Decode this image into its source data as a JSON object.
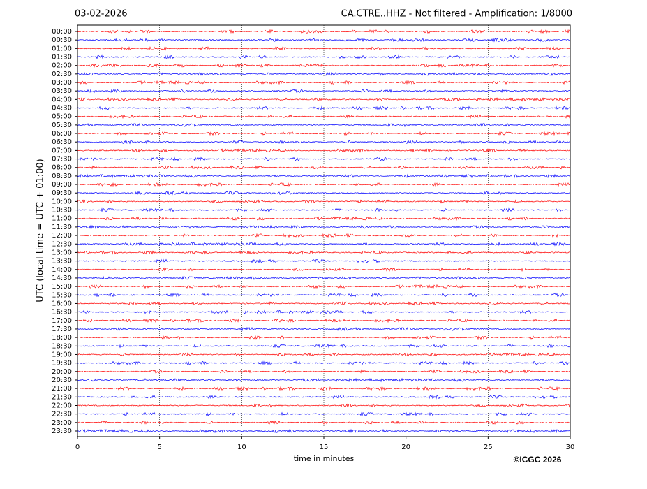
{
  "chart_data": {
    "type": "helicorder",
    "date": "03-02-2026",
    "title": "CA.CTRE..HHZ - Not filtered - Amplification: 1/8000",
    "ylabel": "UTC (local time = UTC + 01:00)",
    "xlabel": "time in minutes",
    "rows": [
      "00:00",
      "00:30",
      "01:00",
      "01:30",
      "02:00",
      "02:30",
      "03:00",
      "03:30",
      "04:00",
      "04:30",
      "05:00",
      "05:30",
      "06:00",
      "06:30",
      "07:00",
      "07:30",
      "08:00",
      "08:30",
      "09:00",
      "09:30",
      "10:00",
      "10:30",
      "11:00",
      "11:30",
      "12:00",
      "12:30",
      "13:00",
      "13:30",
      "14:00",
      "14:30",
      "15:00",
      "15:30",
      "16:00",
      "16:30",
      "17:00",
      "17:30",
      "18:00",
      "18:30",
      "19:00",
      "19:30",
      "20:00",
      "20:30",
      "21:00",
      "21:30",
      "22:00",
      "22:30",
      "23:00",
      "23:30"
    ],
    "colors": [
      "#ff0000",
      "#0000ff"
    ],
    "xlim": [
      0,
      30
    ],
    "xticks": [
      0,
      5,
      10,
      15,
      20,
      25,
      30
    ],
    "grid": true
  },
  "copyright": "©ICGC 2026"
}
